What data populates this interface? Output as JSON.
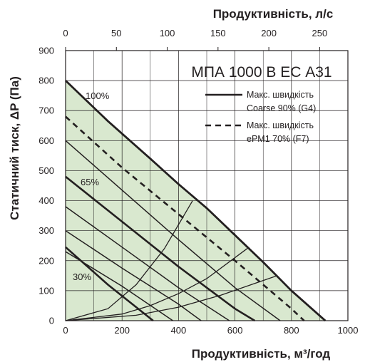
{
  "chart_data": {
    "type": "line",
    "model_title": "МПА 1000 В ЕС А31",
    "xlabel": "Продуктивність, м³/год",
    "ylabel": "Статичний тиск, ΔP (Па)",
    "x2label": "Продуктивність, л/с",
    "xlim": [
      0,
      1000
    ],
    "ylim": [
      0,
      900
    ],
    "x2lim": [
      0,
      277.8
    ],
    "xticks": [
      0,
      200,
      400,
      600,
      800,
      1000
    ],
    "yticks": [
      0,
      100,
      200,
      300,
      400,
      500,
      600,
      700,
      800,
      900
    ],
    "x2ticks": [
      0,
      50,
      100,
      150,
      200,
      250
    ],
    "grid": true,
    "colors": {
      "fill": "#d9e8cf",
      "line": "#231f20",
      "grid": "#231f20"
    },
    "fill_region": {
      "x": [
        0,
        150,
        300,
        400,
        500,
        600,
        700,
        800,
        920
      ],
      "y": [
        800,
        665,
        540,
        455,
        375,
        285,
        195,
        100,
        0
      ]
    },
    "fan_curves": [
      {
        "label": "100%",
        "bold": true,
        "x": [
          0,
          150,
          300,
          400,
          500,
          600,
          700,
          800,
          920
        ],
        "y": [
          800,
          665,
          540,
          455,
          375,
          285,
          195,
          100,
          0
        ]
      },
      {
        "label": "",
        "bold": false,
        "x": [
          0,
          200,
          400,
          600,
          760
        ],
        "y": [
          600,
          435,
          270,
          110,
          0
        ]
      },
      {
        "label": "65%",
        "bold": true,
        "x": [
          0,
          200,
          400,
          600,
          670
        ],
        "y": [
          480,
          330,
          180,
          40,
          0
        ]
      },
      {
        "label": "",
        "bold": false,
        "x": [
          0,
          200,
          400,
          580
        ],
        "y": [
          380,
          245,
          110,
          0
        ]
      },
      {
        "label": "",
        "bold": false,
        "x": [
          0,
          200,
          400,
          480
        ],
        "y": [
          300,
          175,
          55,
          0
        ]
      },
      {
        "label": "",
        "bold": false,
        "x": [
          0,
          200,
          380
        ],
        "y": [
          230,
          115,
          0
        ]
      },
      {
        "label": "30%",
        "bold": true,
        "x": [
          0,
          150,
          310
        ],
        "y": [
          245,
          120,
          0
        ]
      }
    ],
    "system_curves": [
      {
        "x": [
          0,
          150,
          250,
          350,
          450
        ],
        "y": [
          0,
          40,
          120,
          240,
          400
        ]
      },
      {
        "x": [
          0,
          200,
          300,
          400,
          500,
          650
        ],
        "y": [
          0,
          22,
          50,
          90,
          140,
          245
        ]
      },
      {
        "x": [
          0,
          250,
          400,
          550,
          750
        ],
        "y": [
          0,
          18,
          45,
          85,
          150
        ]
      }
    ],
    "series": [
      {
        "name": "Макс. швидкість Coarse 90% (G4)",
        "style": "solid",
        "x": [
          0,
          150,
          300,
          400,
          500,
          600,
          700,
          800,
          920
        ],
        "y": [
          800,
          665,
          540,
          455,
          375,
          285,
          195,
          100,
          0
        ]
      },
      {
        "name": "Макс. швидкість ePM1 70% (F7)",
        "style": "dashed",
        "x": [
          0,
          200,
          400,
          600,
          800,
          845
        ],
        "y": [
          680,
          510,
          355,
          200,
          40,
          0
        ]
      }
    ],
    "legend": [
      {
        "line1": "Макс. швидкість",
        "line2": "Coarse 90% (G4)",
        "style": "solid"
      },
      {
        "line1": "Макс. швидкість",
        "line2": "ePM1 70% (F7)",
        "style": "dashed"
      }
    ],
    "legend_position": "top-right"
  }
}
